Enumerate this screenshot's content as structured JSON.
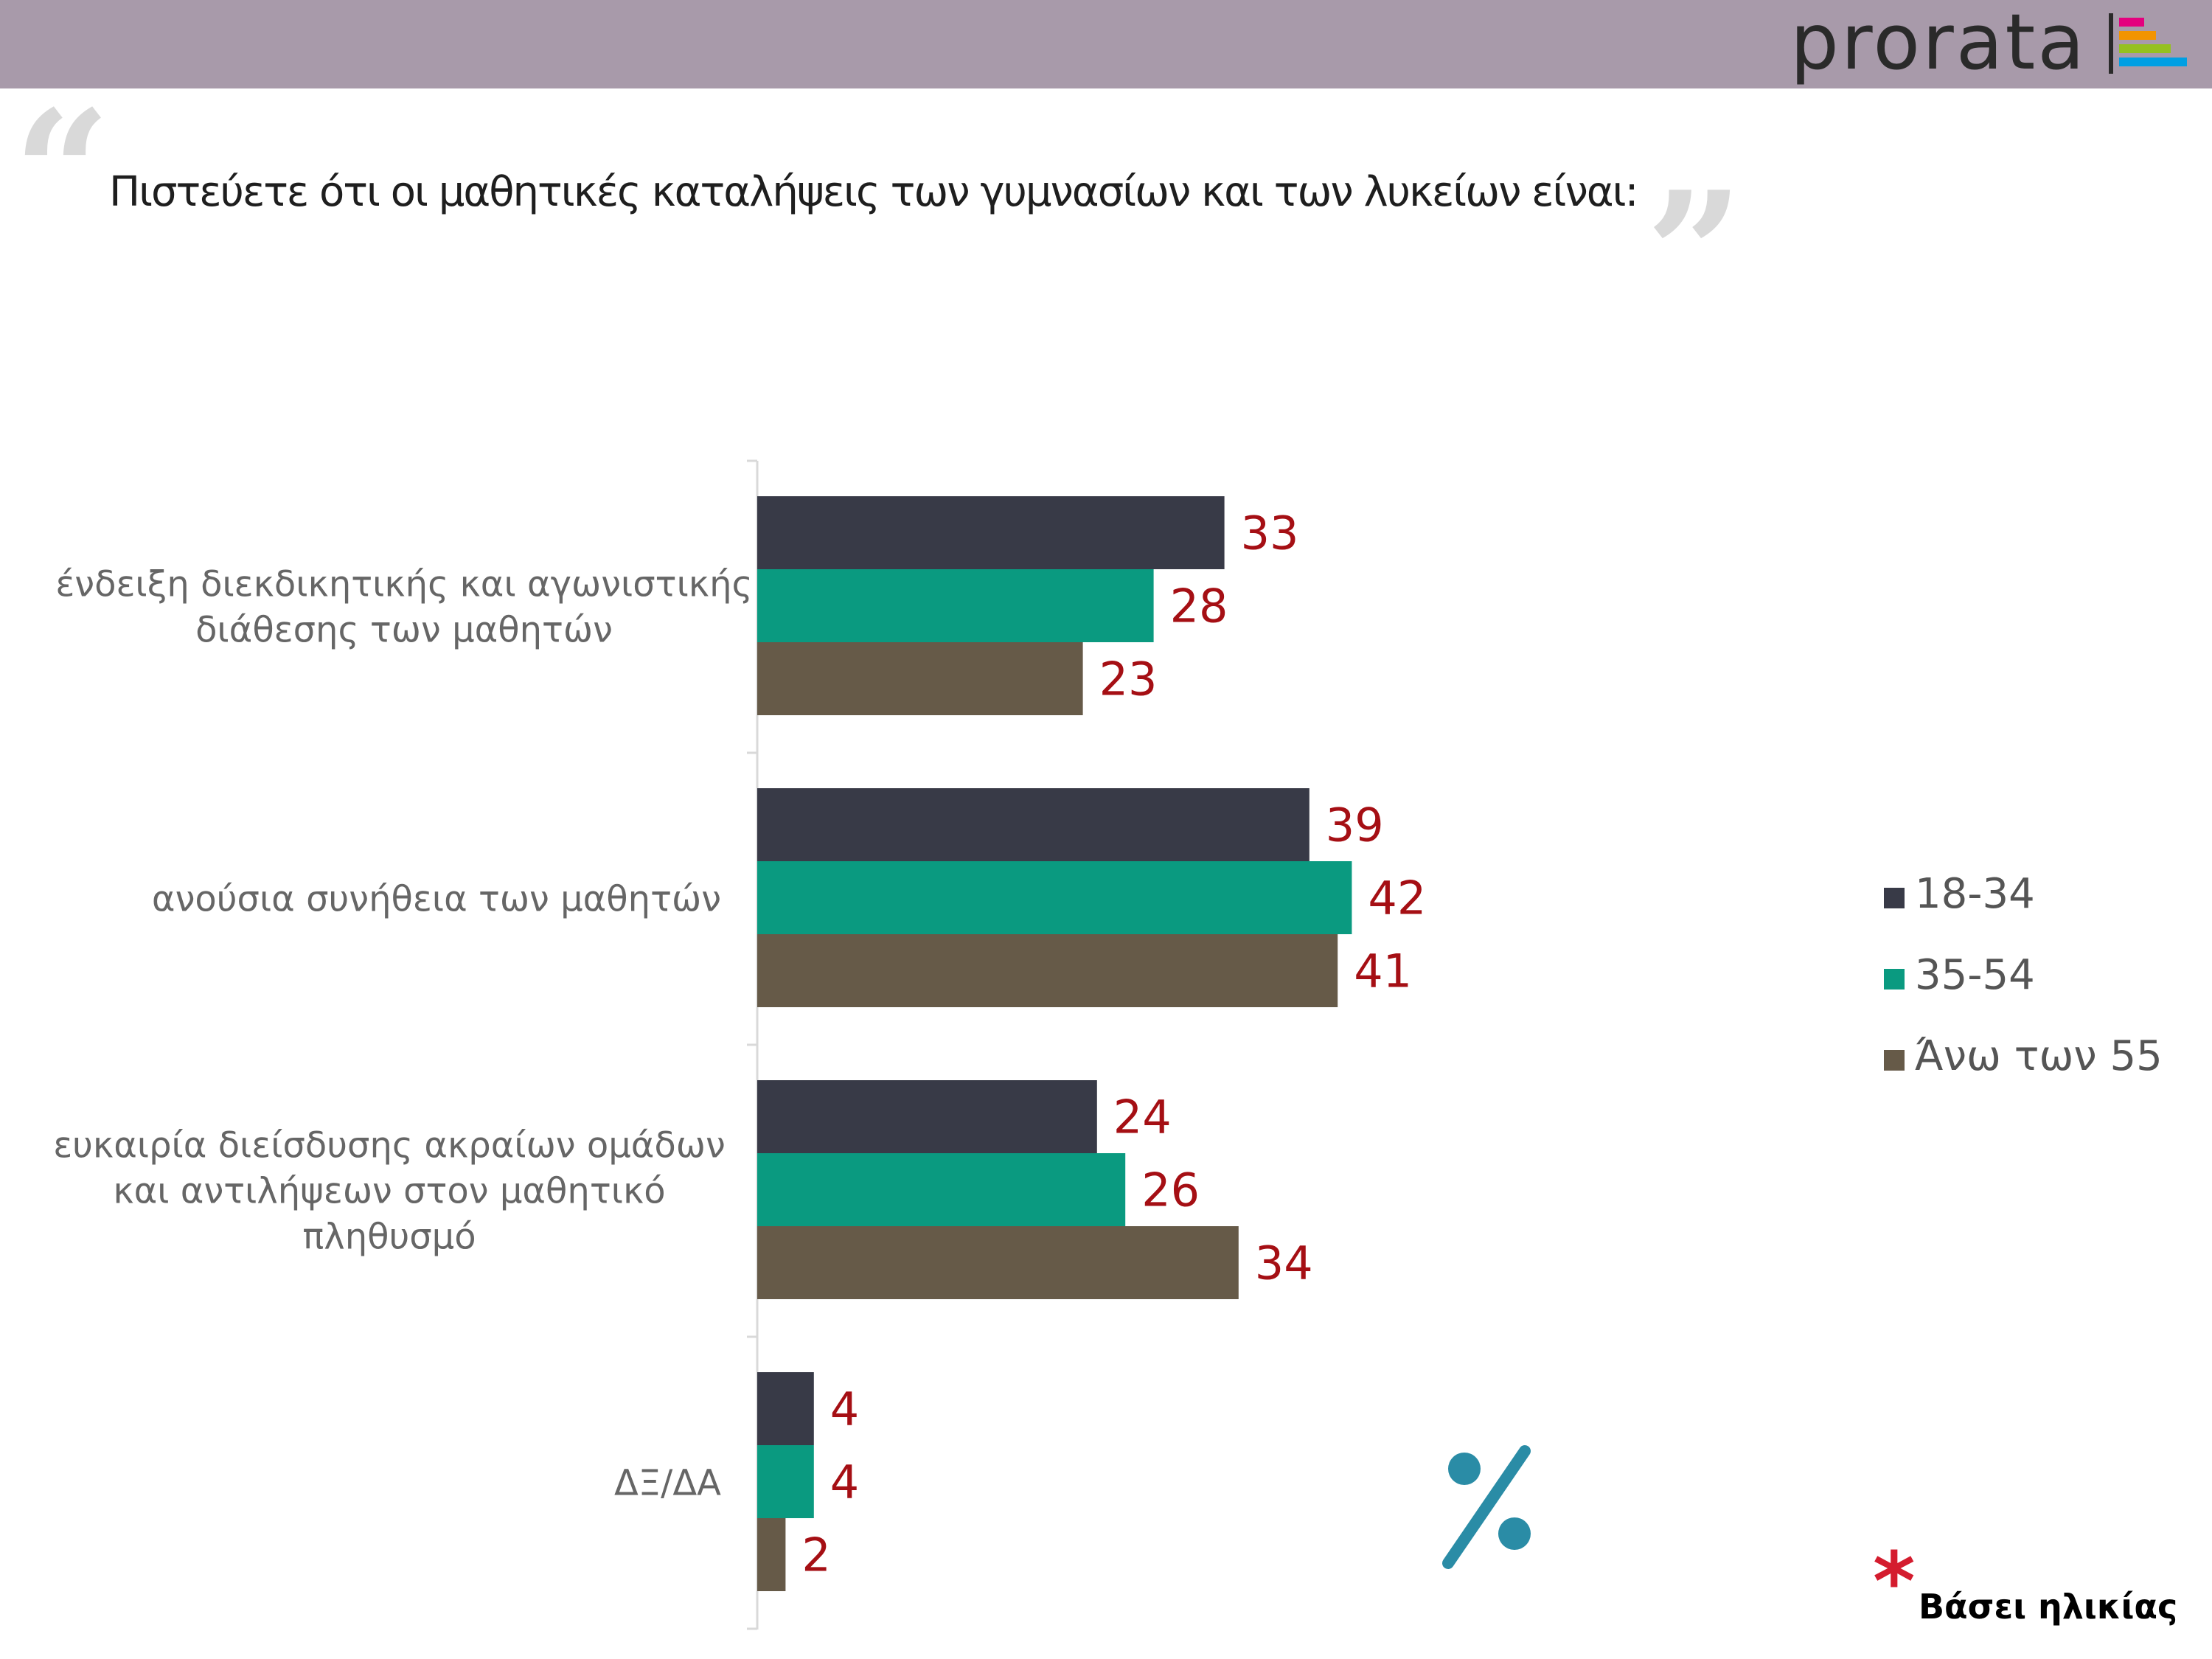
{
  "header": {
    "logo_text": "prorata",
    "logo_mark_colors": [
      "#e4007e",
      "#f29400",
      "#95c11f",
      "#009fe3"
    ]
  },
  "question": "Πιστεύετε ότι οι μαθητικές καταλήψεις των γυμνασίων και των λυκείων είναι:",
  "quote_open": "“",
  "quote_close": "”",
  "footnote": {
    "asterisk": "*",
    "text": "Βάσει ηλικίας"
  },
  "percent_symbol_color": "#2a8ca6",
  "chart_data": {
    "type": "bar",
    "orientation": "horizontal",
    "categories": [
      [
        "ένδειξη διεκδικητικής και αγωνιστικής",
        "διάθεσης των μαθητών"
      ],
      [
        "ανούσια συνήθεια των μαθητών"
      ],
      [
        "ευκαιρία διείσδυσης ακραίων ομάδων",
        "και αντιλήψεων στον μαθητικό",
        "πληθυσμό"
      ],
      [
        "ΔΞ/ΔΑ"
      ]
    ],
    "series": [
      {
        "name": "18-34",
        "color": "#383a47",
        "values": [
          33,
          39,
          24,
          4
        ]
      },
      {
        "name": "35-54",
        "color": "#0a9a80",
        "values": [
          28,
          42,
          26,
          4
        ]
      },
      {
        "name": "Άνω των 55",
        "color": "#665a48",
        "values": [
          23,
          41,
          34,
          2
        ]
      }
    ],
    "data_label_color": "#a50f14",
    "legend_position": "right",
    "grid": false,
    "xlim": [
      0,
      45
    ],
    "unit": "%"
  }
}
